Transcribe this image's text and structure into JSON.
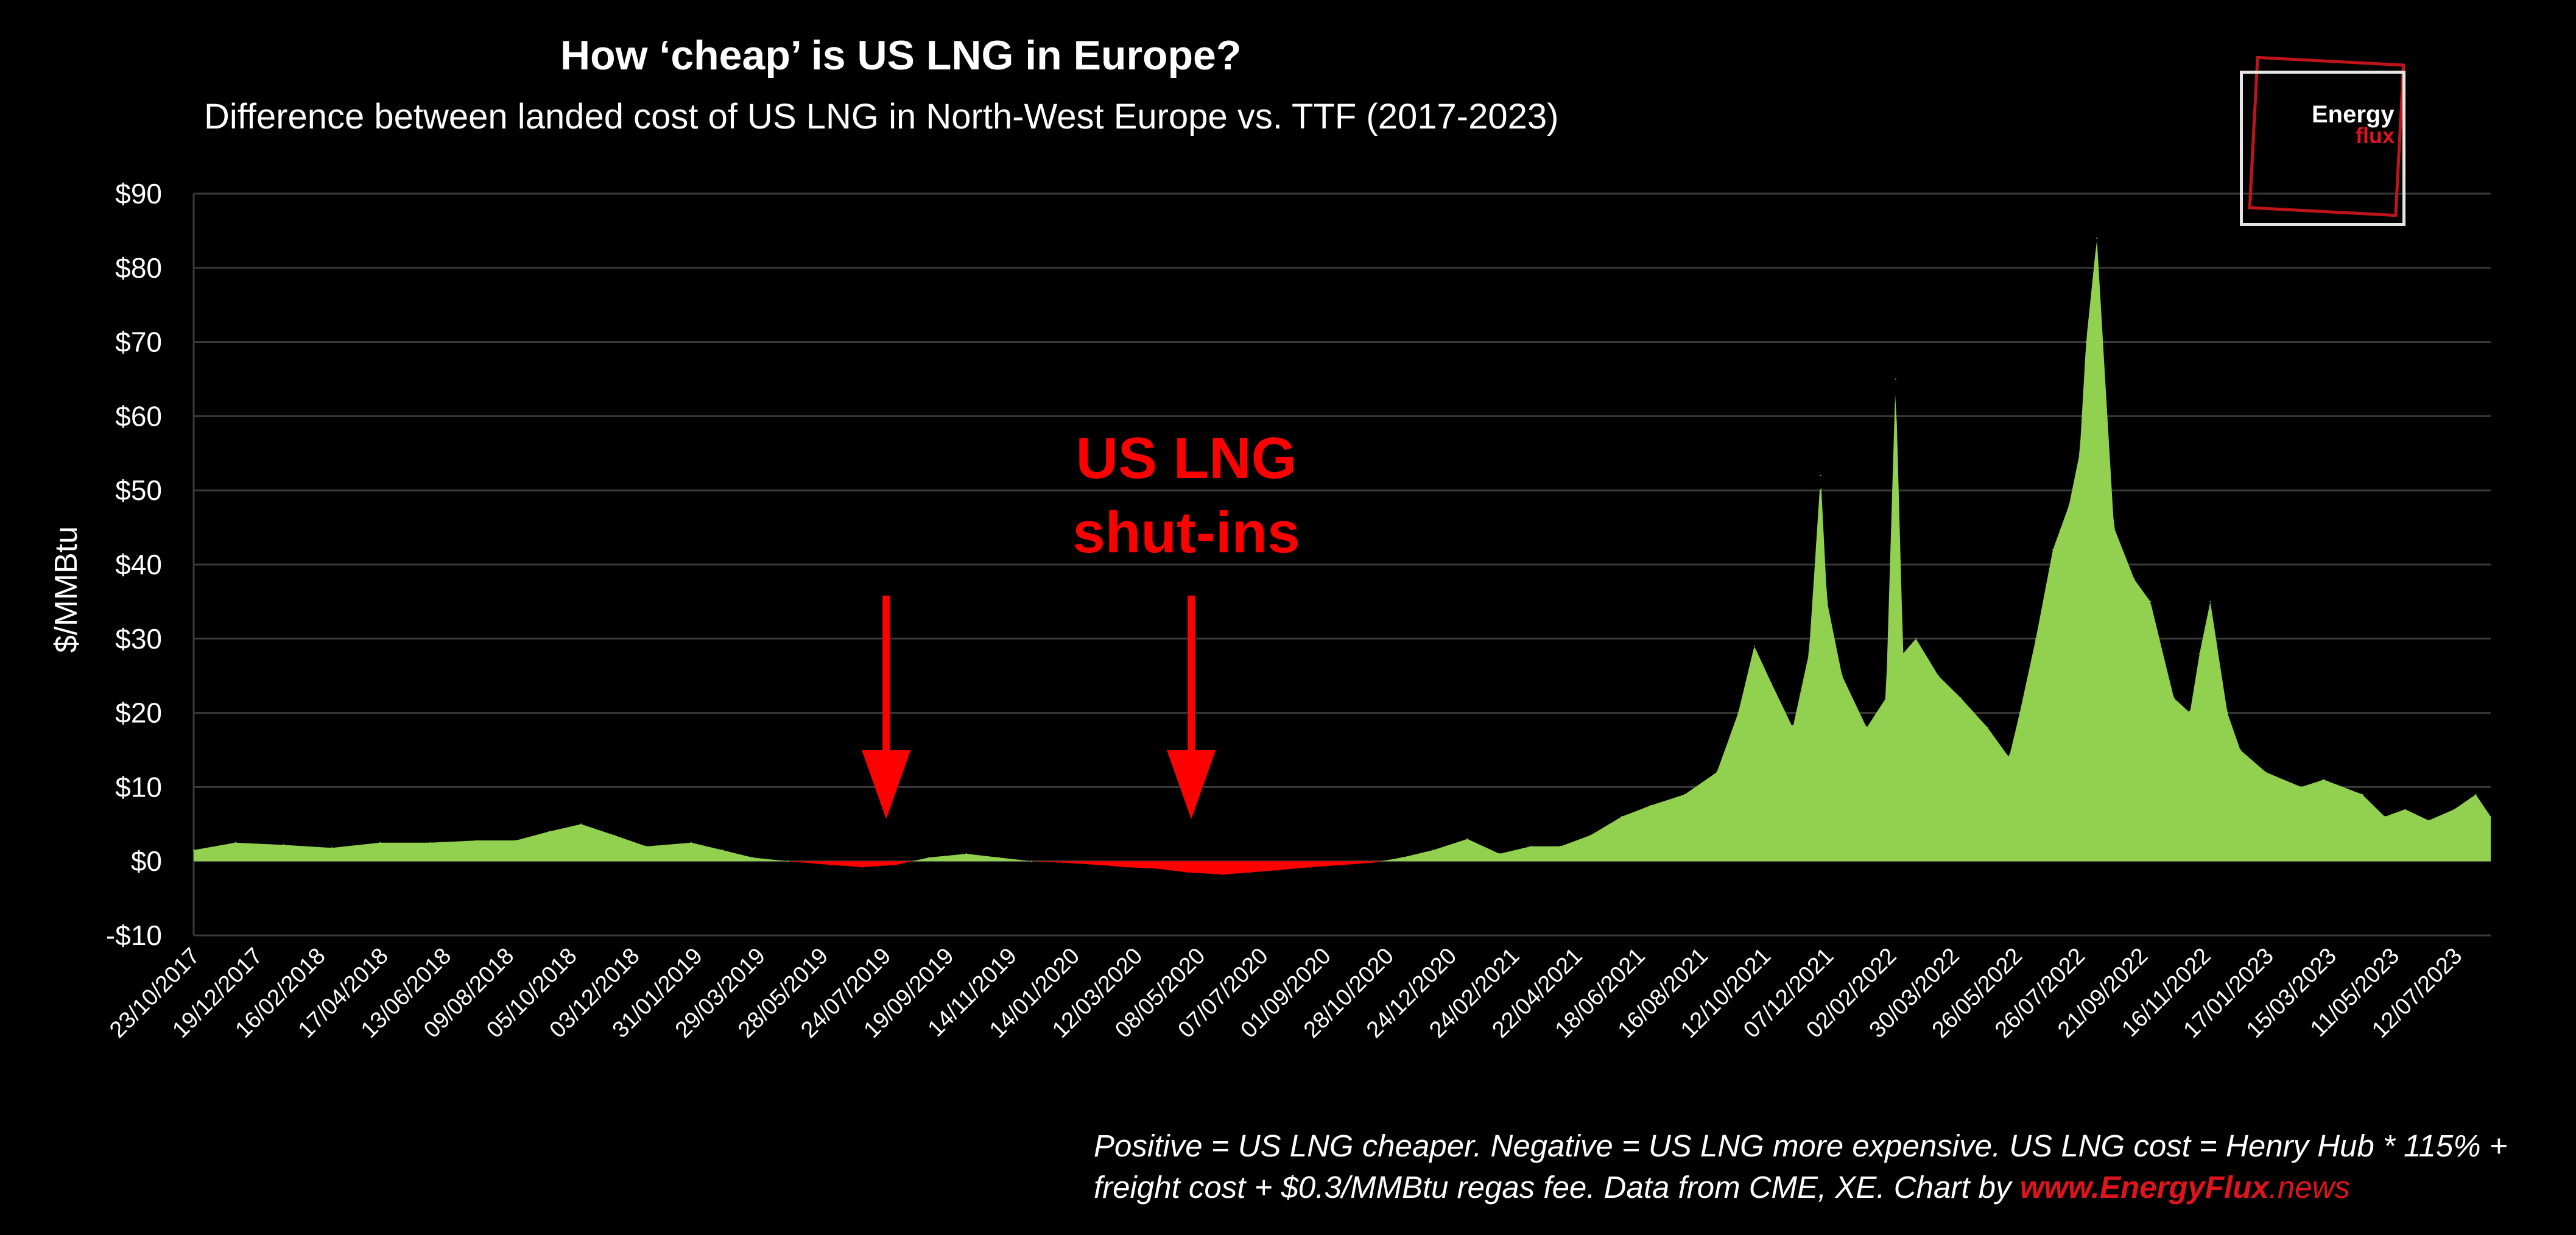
{
  "header": {
    "title": "How ‘cheap’ is US LNG in Europe?",
    "subtitle": "Difference between landed cost of US LNG in North-West Europe vs. TTF (2017-2023)"
  },
  "logo": {
    "line1": "Energy",
    "line2": "flux"
  },
  "footnote": {
    "text": "Positive = US LNG cheaper. Negative = US LNG more expensive. US LNG cost = Henry Hub * 115% + freight cost + $0.3/MMBtu regas fee. Data from CME, XE. Chart by ",
    "link_prefix": "www.",
    "link_bold": "EnergyFlux",
    "link_suffix": ".news"
  },
  "colors": {
    "positive": "#92d050",
    "negative": "#ff0000",
    "grid": "#3a3a3a",
    "annotation": "#ff0000"
  },
  "chart_data": {
    "type": "area",
    "ylabel": "$/MMBtu",
    "ylim": [
      -10,
      90
    ],
    "yticks": [
      -10,
      0,
      10,
      20,
      30,
      40,
      50,
      60,
      70,
      80,
      90
    ],
    "ytick_labels": [
      "-$10",
      "$0",
      "$10",
      "$20",
      "$30",
      "$40",
      "$50",
      "$60",
      "$70",
      "$80",
      "$90"
    ],
    "x_start": "2017-10-23",
    "x_end": "2023-09-08",
    "xtick_labels": [
      "23/10/2017",
      "19/12/2017",
      "16/02/2018",
      "17/04/2018",
      "13/06/2018",
      "09/08/2018",
      "05/10/2018",
      "03/12/2018",
      "31/01/2019",
      "29/03/2019",
      "28/05/2019",
      "24/07/2019",
      "19/09/2019",
      "14/11/2019",
      "14/01/2020",
      "12/03/2020",
      "08/05/2020",
      "07/07/2020",
      "01/09/2020",
      "28/10/2020",
      "24/12/2020",
      "24/02/2021",
      "22/04/2021",
      "18/06/2021",
      "16/08/2021",
      "12/10/2021",
      "07/12/2021",
      "02/02/2022",
      "30/03/2022",
      "26/05/2022",
      "26/07/2022",
      "21/09/2022",
      "16/11/2022",
      "17/01/2023",
      "15/03/2023",
      "11/05/2023",
      "12/07/2023"
    ],
    "annotation": {
      "lines": [
        "US LNG",
        "shut-ins"
      ],
      "arrow_dates": [
        "2019-08-01",
        "2020-05-12"
      ]
    },
    "series": [
      {
        "x": [
          "2017-10-23",
          "2017-12-01",
          "2018-01-15",
          "2018-03-01",
          "2018-04-15",
          "2018-06-01",
          "2018-07-15",
          "2018-08-20",
          "2018-09-20",
          "2018-10-20",
          "2018-11-20",
          "2018-12-20",
          "2019-01-31",
          "2019-03-01",
          "2019-03-29",
          "2019-05-01",
          "2019-06-10",
          "2019-07-10",
          "2019-08-10",
          "2019-09-10",
          "2019-10-15",
          "2019-11-14",
          "2019-12-15",
          "2020-01-14",
          "2020-02-15",
          "2020-03-12",
          "2020-04-10",
          "2020-05-08",
          "2020-06-10",
          "2020-07-07",
          "2020-08-01",
          "2020-09-01",
          "2020-10-01",
          "2020-10-28",
          "2020-11-25",
          "2020-12-24",
          "2021-01-25",
          "2021-02-24",
          "2021-03-25",
          "2021-04-22",
          "2021-05-20",
          "2021-06-18",
          "2021-07-15",
          "2021-08-16",
          "2021-09-15",
          "2021-10-05",
          "2021-10-20",
          "2021-11-05",
          "2021-11-25",
          "2021-12-10",
          "2021-12-21",
          "2021-12-27",
          "2022-01-10",
          "2022-02-02",
          "2022-02-20",
          "2022-03-01",
          "2022-03-08",
          "2022-03-20",
          "2022-04-10",
          "2022-05-01",
          "2022-05-26",
          "2022-06-15",
          "2022-06-25",
          "2022-07-10",
          "2022-07-26",
          "2022-08-10",
          "2022-08-20",
          "2022-08-26",
          "2022-09-05",
          "2022-09-21",
          "2022-10-10",
          "2022-10-25",
          "2022-11-16",
          "2022-12-01",
          "2022-12-10",
          "2022-12-20",
          "2023-01-05",
          "2023-01-17",
          "2023-02-10",
          "2023-03-15",
          "2023-04-05",
          "2023-05-11",
          "2023-06-01",
          "2023-06-20",
          "2023-07-12",
          "2023-08-05",
          "2023-08-25",
          "2023-09-08"
        ],
        "y": [
          1.5,
          2.5,
          2.2,
          1.8,
          2.5,
          2.5,
          2.8,
          2.8,
          4.0,
          5.0,
          3.5,
          2.0,
          2.5,
          1.5,
          0.5,
          0.0,
          -0.5,
          -0.8,
          -0.5,
          0.5,
          1.0,
          0.5,
          0.0,
          -0.2,
          -0.5,
          -0.8,
          -1.0,
          -1.5,
          -1.8,
          -1.5,
          -1.2,
          -0.8,
          -0.5,
          -0.2,
          0.5,
          1.5,
          3.0,
          1.0,
          2.0,
          2.0,
          3.5,
          6.0,
          7.5,
          9.0,
          12.0,
          20.0,
          29.0,
          24.0,
          18.0,
          28.0,
          52.0,
          35.0,
          25.0,
          18.0,
          22.0,
          65.0,
          28.0,
          30.0,
          25.0,
          22.0,
          18.0,
          14.0,
          20.0,
          30.0,
          42.0,
          48.0,
          55.0,
          70.0,
          84.0,
          45.0,
          38.0,
          35.0,
          22.0,
          20.0,
          28.0,
          35.0,
          20.0,
          15.0,
          12.0,
          10.0,
          11.0,
          9.0,
          6.0,
          7.0,
          5.5,
          7.0,
          9.0,
          6.0
        ]
      }
    ]
  }
}
